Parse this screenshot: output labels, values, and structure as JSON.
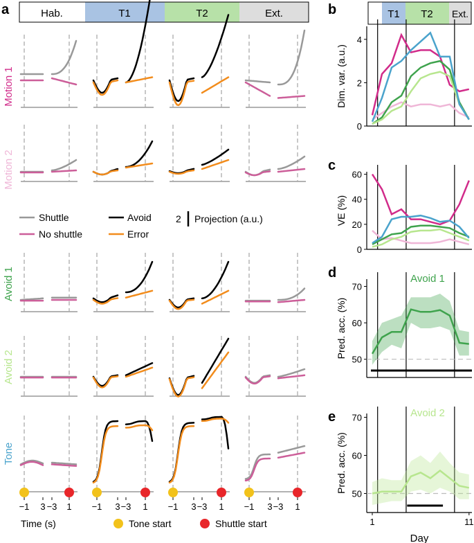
{
  "panel_letters": {
    "a": "a",
    "b": "b",
    "c": "c",
    "d": "d",
    "e": "e"
  },
  "colors": {
    "hab": "#ffffff",
    "t1": "#a9c3e3",
    "t2": "#b7e1a8",
    "ext": "#dddddd",
    "motion1": "#d12b8a",
    "motion2": "#efb6d7",
    "avoid1": "#3fa34d",
    "avoid2": "#b7e68e",
    "tone": "#4aa3cc",
    "shuttle": "#999999",
    "noshuttle": "#cc5e99",
    "avoid": "#000000",
    "error": "#f28c1c",
    "tonestart": "#f2c21b",
    "shuttlestart": "#e8262a"
  },
  "phases": {
    "hab": "Hab.",
    "t1": "T1",
    "t2": "T2",
    "ext": "Ext."
  },
  "row_labels": [
    "Motion 1",
    "Motion 2",
    "Avoid 1",
    "Avoid 2",
    "Tone"
  ],
  "legend": {
    "shuttle": "Shuttle",
    "noshuttle": "No shuttle",
    "avoid": "Avoid",
    "error": "Error",
    "scale": "2",
    "scale_label": "Projection (a.u.)"
  },
  "bottom": {
    "tick_m1": "−1",
    "tick_3": "3",
    "tick_m3": "−3",
    "tick_1": "1",
    "xlabel": "Time (s)",
    "tone_start": "Tone start",
    "shuttle_start": "Shuttle start"
  },
  "chart_data": [
    {
      "panel": "b",
      "type": "line",
      "ylabel": "Dim. var. (a.u.)",
      "ylim": [
        0,
        4.6
      ],
      "yticks": [
        "0",
        "2",
        "4"
      ],
      "ytick_values": [
        0,
        2,
        4
      ],
      "x": [
        1,
        2,
        3,
        4,
        5,
        6,
        7,
        8,
        9,
        10,
        11
      ],
      "series": [
        {
          "name": "Motion 1",
          "color": "#d12b8a",
          "values": [
            0.5,
            2.4,
            2.9,
            4.2,
            3.4,
            3.5,
            3.5,
            3.2,
            1.9,
            1.6,
            1.7
          ]
        },
        {
          "name": "Motion 2",
          "color": "#efb6d7",
          "values": [
            0.3,
            0.6,
            0.9,
            1.1,
            0.9,
            1.0,
            1.0,
            0.9,
            1.0,
            0.6,
            0.4
          ]
        },
        {
          "name": "Avoid 1",
          "color": "#3fa34d",
          "values": [
            0.1,
            0.4,
            1.1,
            1.4,
            2.3,
            2.7,
            2.9,
            3.0,
            2.6,
            1.1,
            0.3
          ]
        },
        {
          "name": "Avoid 2",
          "color": "#b7e68e",
          "values": [
            0.1,
            0.3,
            0.7,
            0.9,
            1.6,
            2.2,
            2.4,
            2.5,
            2.3,
            1.0,
            0.3
          ]
        },
        {
          "name": "Tone",
          "color": "#4aa3cc",
          "values": [
            0.2,
            1.3,
            2.7,
            3.0,
            3.5,
            3.9,
            4.3,
            3.2,
            3.2,
            1.0,
            0.3
          ]
        }
      ]
    },
    {
      "panel": "c",
      "type": "line",
      "ylabel": "VE (%)",
      "ylim": [
        0,
        62
      ],
      "yticks": [
        "0",
        "20",
        "40",
        "60"
      ],
      "ytick_values": [
        0,
        20,
        40,
        60
      ],
      "x": [
        1,
        2,
        3,
        4,
        5,
        6,
        7,
        8,
        9,
        10,
        11
      ],
      "series": [
        {
          "name": "Motion 1",
          "color": "#d12b8a",
          "values": [
            60,
            48,
            28,
            32,
            24,
            24,
            22,
            20,
            23,
            36,
            55
          ]
        },
        {
          "name": "Motion 2",
          "color": "#efb6d7",
          "values": [
            15,
            8,
            9,
            7,
            5,
            5,
            5,
            6,
            8,
            6,
            4
          ]
        },
        {
          "name": "Avoid 1",
          "color": "#3fa34d",
          "values": [
            4,
            8,
            12,
            13,
            18,
            19,
            19,
            18,
            17,
            13,
            10
          ]
        },
        {
          "name": "Avoid 2",
          "color": "#b7e68e",
          "values": [
            2,
            4,
            8,
            10,
            14,
            15,
            15,
            16,
            13,
            10,
            7
          ]
        },
        {
          "name": "Tone",
          "color": "#4aa3cc",
          "values": [
            5,
            10,
            24,
            26,
            26,
            27,
            25,
            22,
            23,
            18,
            9
          ]
        }
      ]
    },
    {
      "panel": "d",
      "type": "area",
      "title": "Avoid 1",
      "ylabel": "Pred. acc. (%)",
      "ylim": [
        45,
        72
      ],
      "yticks": [
        "50",
        "60",
        "70"
      ],
      "ytick_values": [
        50,
        60,
        70
      ],
      "chance": 50,
      "x": [
        1,
        2,
        3,
        4,
        5,
        6,
        7,
        8,
        9,
        10,
        11
      ],
      "series": [
        {
          "name": "Avoid 1",
          "color": "#3fa34d",
          "values": [
            51.5,
            56,
            57.5,
            57.5,
            63.7,
            63,
            63,
            63.5,
            62,
            54.5,
            54.2
          ],
          "lower": [
            48.5,
            52,
            54,
            53,
            60,
            58.5,
            58.5,
            59,
            58,
            51,
            51
          ],
          "upper": [
            55,
            60,
            61,
            62,
            67,
            67,
            67,
            68,
            66,
            58,
            57.5
          ]
        }
      ],
      "significance": {
        "from": 1,
        "to": 11
      }
    },
    {
      "panel": "e",
      "type": "area",
      "title": "Avoid 2",
      "ylabel": "Pred. acc. (%)",
      "xlabel": "Day",
      "ylim": [
        45,
        71
      ],
      "yticks": [
        "50",
        "60",
        "70"
      ],
      "ytick_values": [
        50,
        60,
        70
      ],
      "xticks": [
        "1",
        "11"
      ],
      "xtick_values": [
        1,
        11
      ],
      "chance": 50,
      "x": [
        1,
        2,
        3,
        4,
        5,
        6,
        7,
        8,
        9,
        10,
        11
      ],
      "series": [
        {
          "name": "Avoid 2",
          "color": "#b7e68e",
          "values": [
            50,
            50.5,
            50.5,
            50.5,
            54.5,
            55.5,
            54,
            56,
            54,
            52,
            51.5
          ],
          "lower": [
            47,
            47.5,
            48,
            48,
            50.5,
            51,
            50,
            51.5,
            50.5,
            48.5,
            48.5
          ],
          "upper": [
            53,
            54,
            53.5,
            53.5,
            58.5,
            60,
            58,
            61,
            58,
            55.5,
            55
          ]
        }
      ],
      "significance": {
        "from": 5,
        "to": 8
      }
    }
  ]
}
